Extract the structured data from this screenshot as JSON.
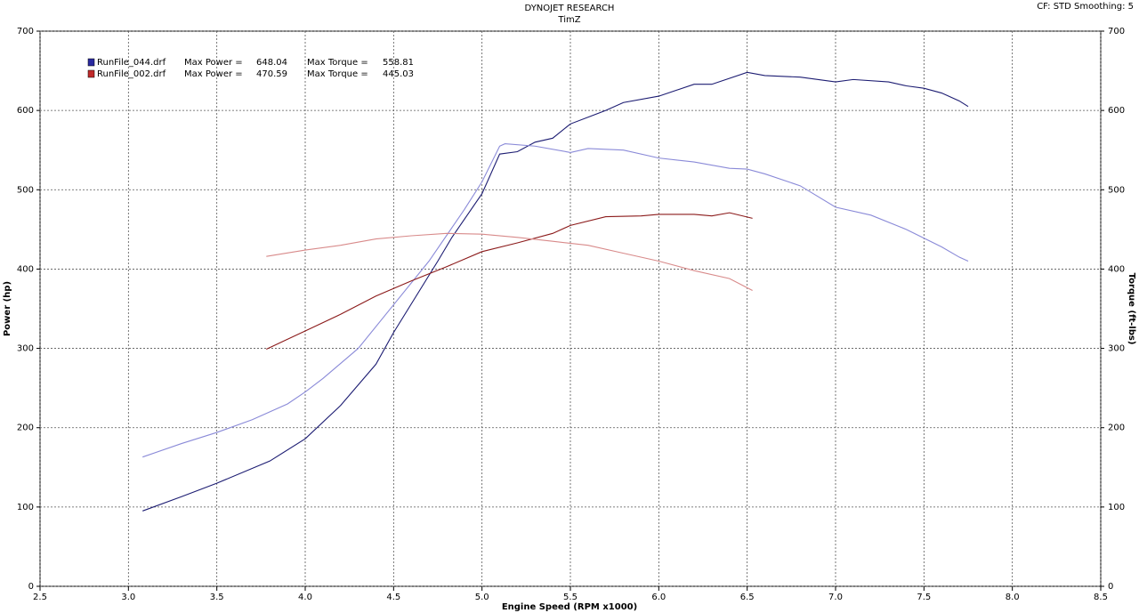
{
  "chart_data": {
    "type": "line",
    "title": "DYNOJET RESEARCH",
    "subtitle": "TimZ",
    "settings_label": "CF: STD  Smoothing: 5",
    "xlabel": "Engine Speed (RPM x1000)",
    "ylabel": "Power (hp)",
    "y2label": "Torque (ft-lbs)",
    "grid": true,
    "xlim": [
      2.5,
      8.5
    ],
    "xticks": [
      2.5,
      {
        "value": 3,
        "label": "3.0"
      },
      3.5,
      {
        "value": 4,
        "label": "4.0"
      },
      4.5,
      {
        "value": 5,
        "label": "5.0"
      },
      5.5,
      {
        "value": 6,
        "label": "6.0"
      },
      6.5,
      {
        "value": 7,
        "label": "7.0"
      },
      7.5,
      {
        "value": 8,
        "label": "8.0"
      },
      8.5
    ],
    "ylim": [
      0,
      700
    ],
    "yticks": [
      0,
      100,
      200,
      300,
      400,
      500,
      600,
      700
    ],
    "y2lim": [
      0,
      700
    ],
    "y2ticks": [
      0,
      100,
      200,
      300,
      400,
      500,
      600,
      700
    ],
    "legend": [
      {
        "name": "RunFile_044.drf",
        "color": "#2a2aa0",
        "power_label": "Max Power =",
        "max_power": 648.04,
        "torque_label": "Max Torque =",
        "max_torque": 558.81
      },
      {
        "name": "RunFile_002.drf",
        "color": "#c02a2a",
        "power_label": "Max Power =",
        "max_power": 470.59,
        "torque_label": "Max Torque =",
        "max_torque": 445.03
      }
    ],
    "series": [
      {
        "color": "#1c1c72",
        "axis": "y",
        "x": [
          3.08,
          3.3,
          3.5,
          3.8,
          4.0,
          4.2,
          4.4,
          4.5,
          4.75,
          4.83,
          5.0,
          5.1,
          5.2,
          5.3,
          5.4,
          5.5,
          5.7,
          5.8,
          6.0,
          6.2,
          6.3,
          6.5,
          6.6,
          6.8,
          7.0,
          7.1,
          7.3,
          7.4,
          7.5,
          7.6,
          7.7,
          7.75
        ],
        "values": [
          95,
          113,
          130,
          158,
          186,
          228,
          280,
          320,
          410,
          440,
          495,
          545,
          548,
          560,
          565,
          583,
          600,
          610,
          618,
          633,
          633,
          648,
          644,
          642,
          636,
          639,
          636,
          631,
          628,
          622,
          612,
          605
        ]
      },
      {
        "color": "#8a8ad8",
        "axis": "y2",
        "x": [
          3.08,
          3.3,
          3.5,
          3.7,
          3.9,
          4.0,
          4.1,
          4.3,
          4.5,
          4.7,
          4.9,
          5.0,
          5.1,
          5.13,
          5.3,
          5.5,
          5.6,
          5.8,
          6.0,
          6.2,
          6.4,
          6.5,
          6.6,
          6.8,
          7.0,
          7.2,
          7.4,
          7.6,
          7.7,
          7.75
        ],
        "values": [
          163,
          180,
          194,
          210,
          230,
          245,
          262,
          300,
          355,
          410,
          475,
          510,
          555,
          558,
          555,
          547,
          552,
          550,
          540,
          535,
          527,
          526,
          520,
          505,
          478,
          468,
          450,
          428,
          415,
          410
        ]
      },
      {
        "color": "#8b1a1a",
        "axis": "y",
        "x": [
          3.78,
          4.0,
          4.2,
          4.4,
          4.6,
          4.8,
          5.0,
          5.2,
          5.4,
          5.5,
          5.7,
          5.9,
          6.0,
          6.2,
          6.3,
          6.4,
          6.53
        ],
        "values": [
          299,
          322,
          343,
          366,
          385,
          403,
          422,
          433,
          445,
          455,
          466,
          467,
          469,
          469,
          467,
          471,
          464
        ]
      },
      {
        "color": "#d88a8a",
        "axis": "y2",
        "x": [
          3.78,
          4.0,
          4.2,
          4.4,
          4.6,
          4.8,
          5.0,
          5.2,
          5.4,
          5.6,
          5.8,
          6.0,
          6.2,
          6.4,
          6.53
        ],
        "values": [
          416,
          424,
          430,
          438,
          442,
          445,
          444,
          440,
          435,
          430,
          420,
          410,
          398,
          388,
          373
        ]
      }
    ]
  }
}
